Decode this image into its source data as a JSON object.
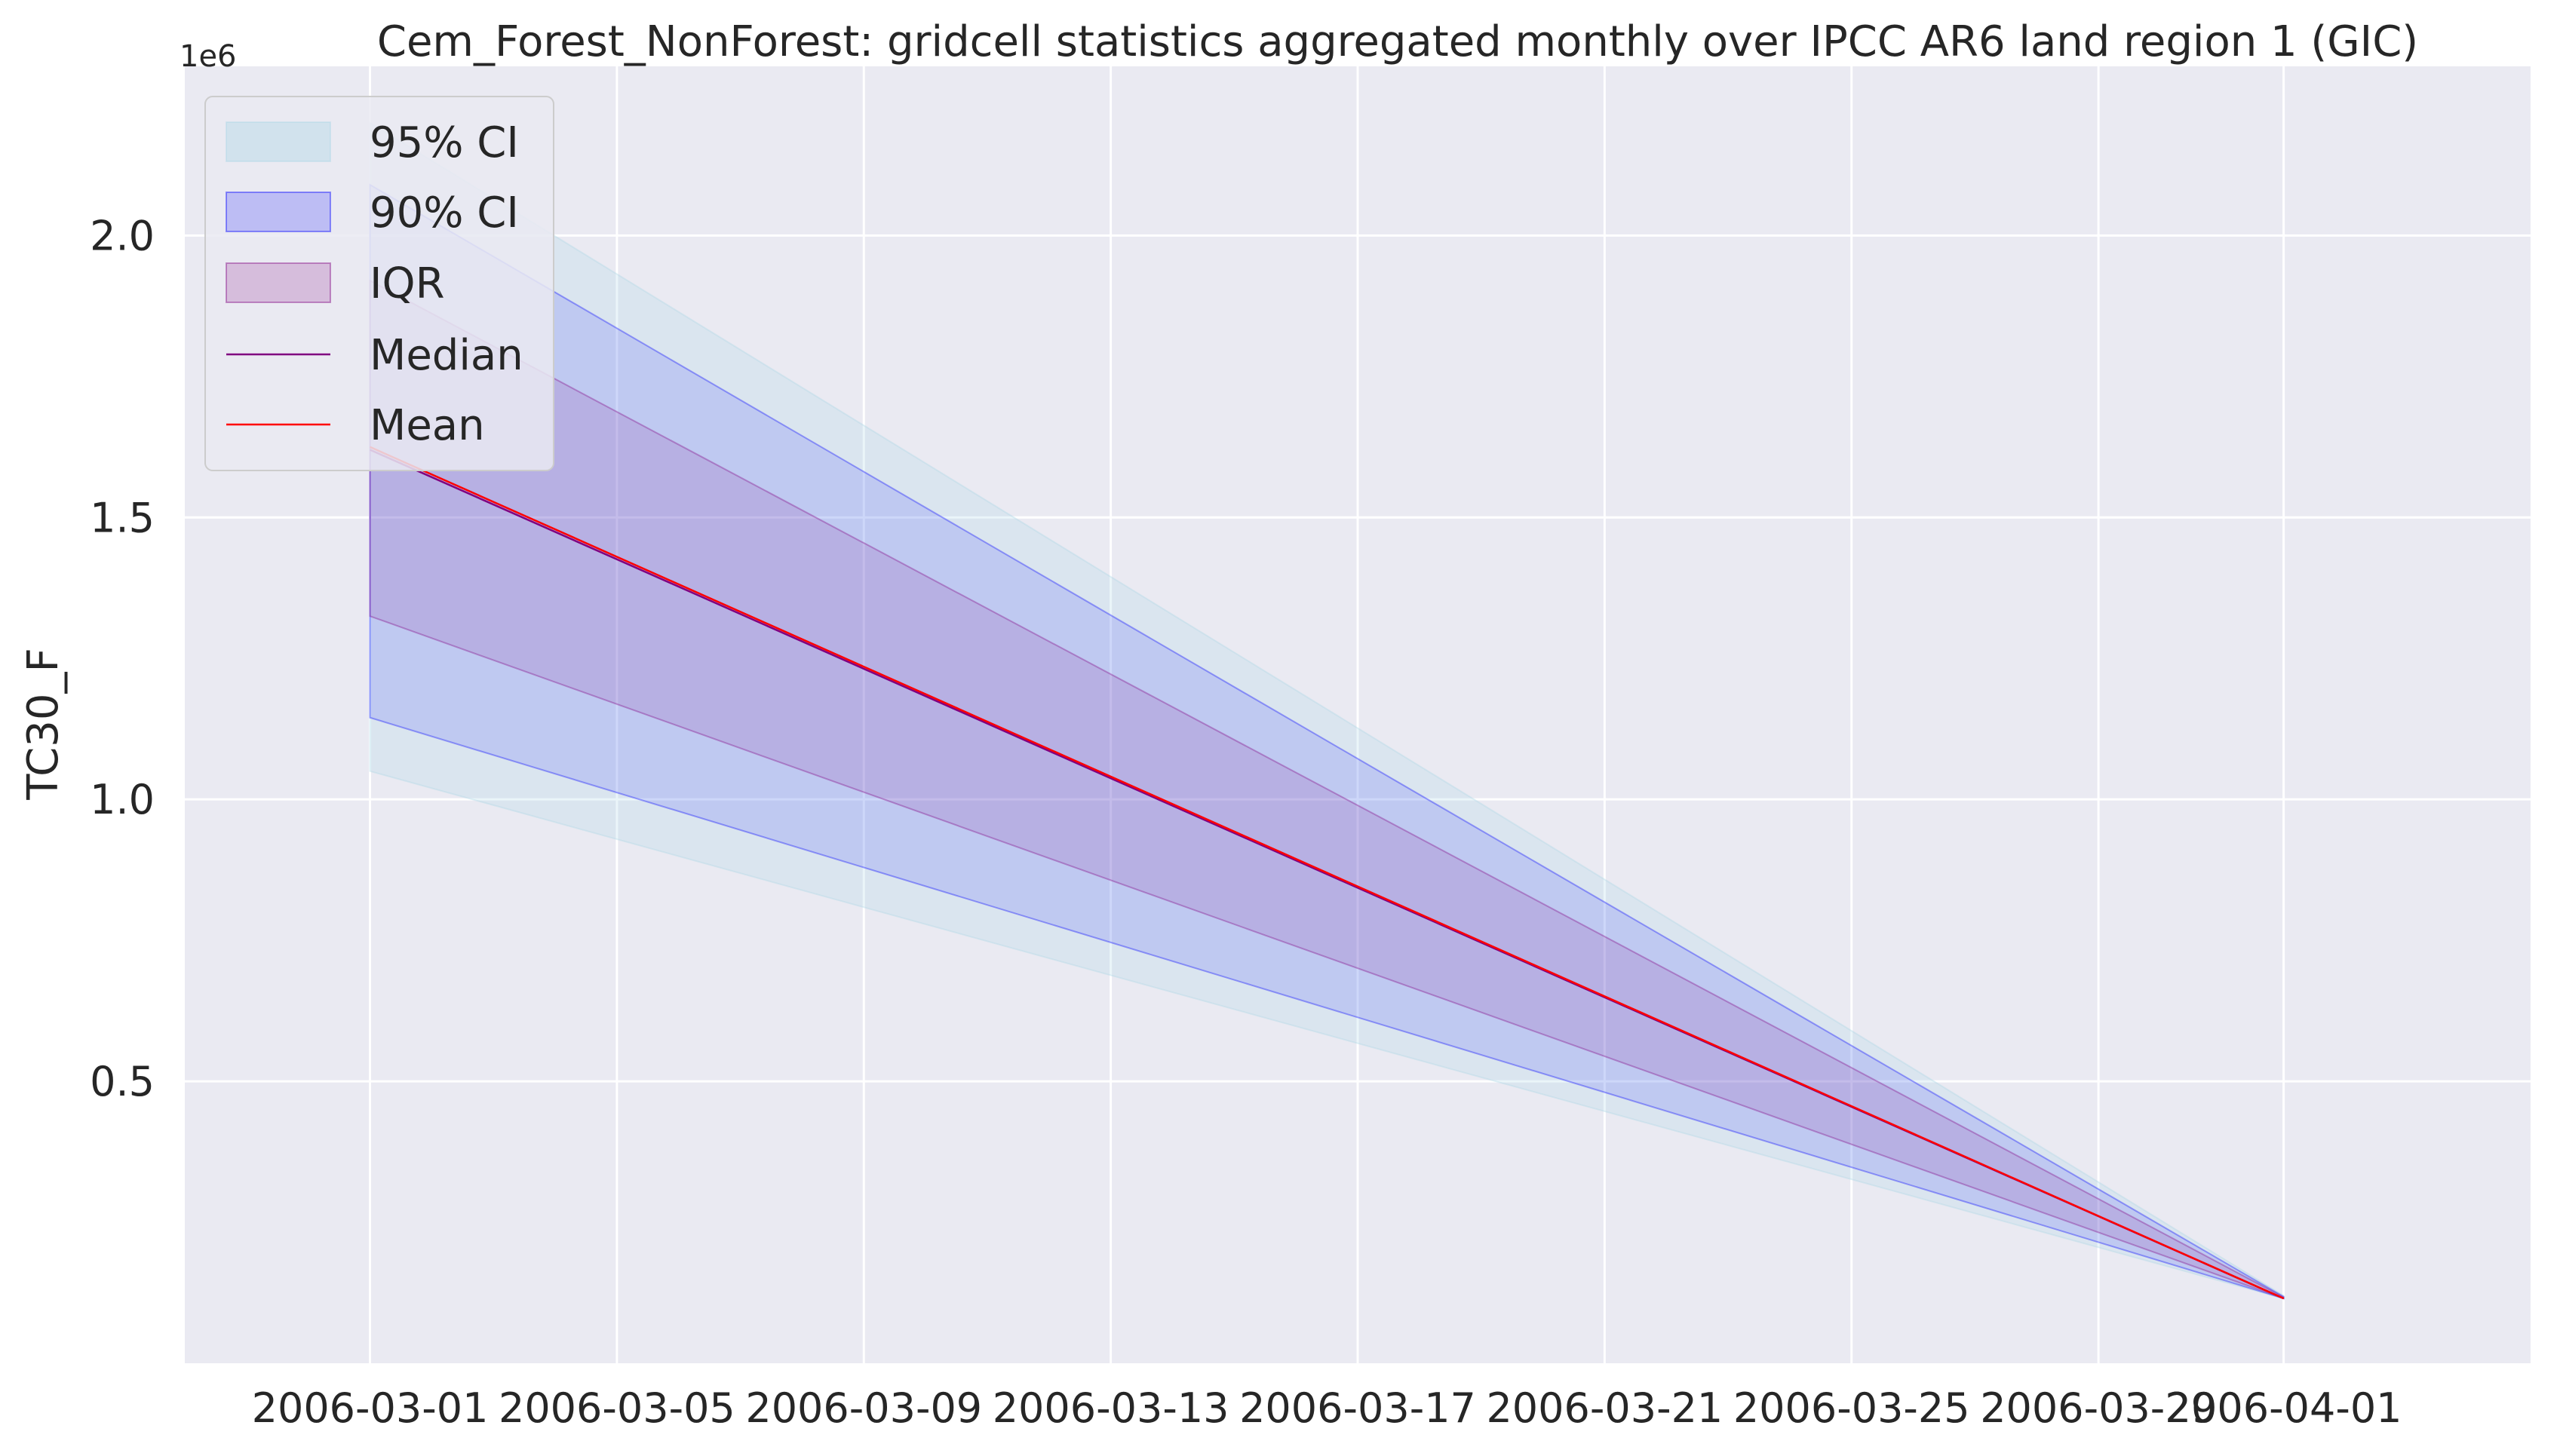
{
  "chart_data": {
    "type": "area",
    "title": "Cem_Forest_NonForest: gridcell statistics aggregated monthly over IPCC AR6 land region 1 (GIC)",
    "xlabel": "",
    "ylabel": "TC30_F",
    "y_offset_label": "1e6",
    "x": [
      "2006-03-01",
      "2006-04-01"
    ],
    "x_range": [
      "2006-02-26",
      "2006-04-05"
    ],
    "ylim": [
      0,
      2300000
    ],
    "x_ticks": [
      "2006-03-01",
      "2006-03-05",
      "2006-03-09",
      "2006-03-13",
      "2006-03-17",
      "2006-03-21",
      "2006-03-25",
      "2006-03-29",
      "2006-04-01"
    ],
    "x_tick_labels": [
      "2006-03-01",
      "2006-03-05",
      "2006-03-09",
      "2006-03-13",
      "2006-03-17",
      "2006-03-21",
      "2006-03-25",
      "2006-03-29",
      "2006-04-01"
    ],
    "y_ticks": [
      500000,
      1000000,
      1500000,
      2000000
    ],
    "y_tick_labels": [
      "0.5",
      "1.0",
      "1.5",
      "2.0"
    ],
    "grid": true,
    "legend_position": "upper left",
    "bands": [
      {
        "name": "95% CI",
        "lower": [
          1050000,
          115000
        ],
        "upper": [
          2200000,
          120000
        ],
        "color": "#add8e6",
        "opacity": 0.25
      },
      {
        "name": "90% CI",
        "lower": [
          1145000,
          115000
        ],
        "upper": [
          2090000,
          118000
        ],
        "color": "#0000ff",
        "opacity": 0.12
      },
      {
        "name": "IQR",
        "lower": [
          1325000,
          115000
        ],
        "upper": [
          1920000,
          117000
        ],
        "color": "#800080",
        "opacity": 0.12
      }
    ],
    "series": [
      {
        "name": "Median",
        "values": [
          1620000,
          115000
        ],
        "color": "#800080"
      },
      {
        "name": "Mean",
        "values": [
          1625000,
          115000
        ],
        "color": "#ff0000"
      }
    ]
  },
  "colors": {
    "plot_background": "#eaeaf2",
    "grid": "#ffffff",
    "text": "#262626"
  }
}
